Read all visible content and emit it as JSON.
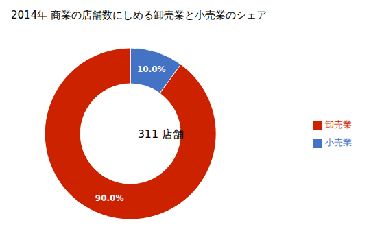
{
  "chart_data": {
    "type": "pie",
    "title": "2014年 商業の店舗数にしめる卸売業と小売業のシェア",
    "annotations": [
      "311 店舗"
    ],
    "categories": [
      "小売業",
      "卸売業"
    ],
    "values": [
      10.0,
      90.0
    ],
    "value_labels": [
      "10.0%",
      "90.0%"
    ],
    "colors": [
      "#4472C4",
      "#CC2200"
    ],
    "data_labels": true,
    "legend": "right"
  }
}
